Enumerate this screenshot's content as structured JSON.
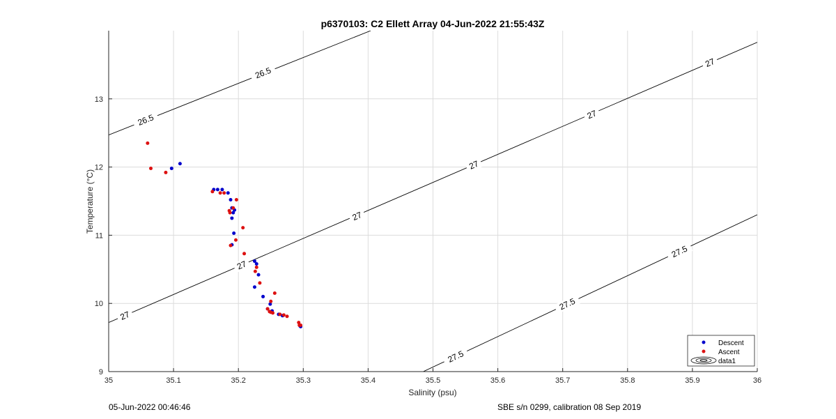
{
  "chart_data": {
    "type": "scatter",
    "title": "p6370103: C2 Ellett Array 04-Jun-2022 21:55:43Z",
    "xlabel": "Salinity (psu)",
    "ylabel": "Temperature (°C)",
    "xlim": [
      35,
      36
    ],
    "ylim": [
      9,
      14
    ],
    "xticks": [
      "35",
      "35.1",
      "35.2",
      "35.3",
      "35.4",
      "35.5",
      "35.6",
      "35.7",
      "35.8",
      "35.9",
      "36"
    ],
    "yticks": [
      "9",
      "10",
      "11",
      "12",
      "13"
    ],
    "grid": true,
    "legend_position": "bottom-right",
    "series": [
      {
        "name": "Descent",
        "color": "#0000cc",
        "x": [
          35.11,
          35.097,
          35.162,
          35.168,
          35.175,
          35.184,
          35.188,
          35.19,
          35.192,
          35.194,
          35.19,
          35.193,
          35.19,
          35.225,
          35.228,
          35.231,
          35.225,
          35.238,
          35.249,
          35.245,
          35.252,
          35.262,
          35.268,
          35.295,
          35.296
        ],
        "y": [
          12.05,
          11.98,
          11.67,
          11.67,
          11.67,
          11.62,
          11.52,
          11.4,
          11.33,
          11.37,
          11.25,
          11.03,
          10.86,
          10.62,
          10.58,
          10.42,
          10.24,
          10.1,
          9.99,
          9.92,
          9.89,
          9.84,
          9.82,
          9.67,
          9.66
        ]
      },
      {
        "name": "Ascent",
        "color": "#dd1111",
        "x": [
          35.06,
          35.065,
          35.088,
          35.16,
          35.172,
          35.178,
          35.186,
          35.192,
          35.197,
          35.187,
          35.207,
          35.196,
          35.188,
          35.209,
          35.228,
          35.226,
          35.233,
          35.256,
          35.25,
          35.245,
          35.248,
          35.25,
          35.253,
          35.264,
          35.27,
          35.275,
          35.293,
          35.294,
          35.296
        ],
        "y": [
          12.35,
          11.98,
          11.92,
          11.64,
          11.62,
          11.62,
          11.36,
          11.4,
          11.52,
          11.33,
          11.11,
          10.93,
          10.85,
          10.73,
          10.53,
          10.47,
          10.3,
          10.15,
          10.03,
          9.92,
          9.88,
          9.87,
          9.86,
          9.84,
          9.83,
          9.81,
          9.72,
          9.68,
          9.68
        ]
      }
    ],
    "contours": [
      {
        "level": 26.5,
        "label": "26.5",
        "x": [
          35.0,
          35.404
        ],
        "y": [
          12.47,
          14.0
        ],
        "label_positions": [
          [
            35.057,
            12.69
          ],
          [
            35.238,
            13.38
          ]
        ]
      },
      {
        "level": 27,
        "label": "27",
        "x": [
          35.0,
          36.0
        ],
        "y": [
          9.72,
          13.83
        ],
        "label_positions": [
          [
            35.025,
            9.82
          ],
          [
            35.205,
            10.56
          ],
          [
            35.383,
            11.28
          ],
          [
            35.563,
            12.03
          ],
          [
            35.745,
            12.77
          ],
          [
            35.927,
            13.53
          ]
        ]
      },
      {
        "level": 27.5,
        "label": "27.5",
        "x": [
          35.485,
          36.0
        ],
        "y": [
          9.0,
          11.3
        ],
        "label_positions": [
          [
            35.535,
            9.22
          ],
          [
            35.707,
            9.99
          ],
          [
            35.88,
            10.76
          ]
        ]
      }
    ],
    "legend_extra": "data1"
  },
  "footer": {
    "left": "05-Jun-2022 00:46:46",
    "right": "SBE s/n 0299, calibration 08 Sep 2019"
  }
}
